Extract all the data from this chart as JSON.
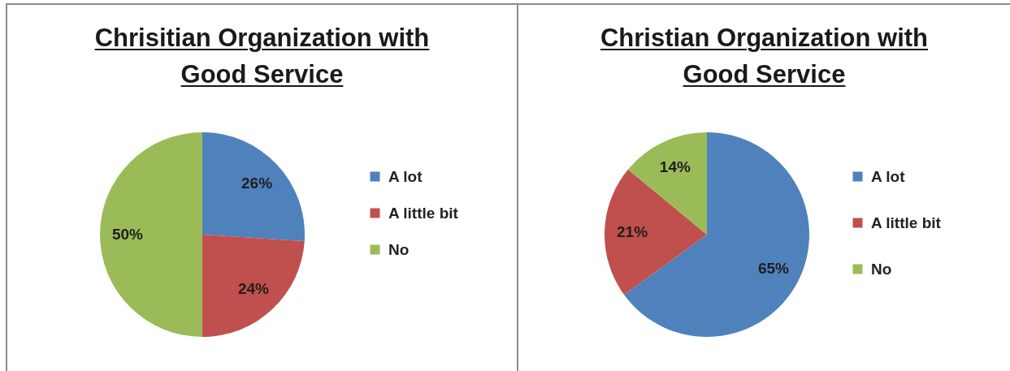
{
  "chart_data": [
    {
      "type": "pie",
      "title": "Chrisitian Organization with Good Service",
      "categories": [
        "A lot",
        "A little bit",
        "No"
      ],
      "values": [
        26,
        24,
        50
      ],
      "value_labels": [
        "26%",
        "24%",
        "50%"
      ],
      "colors": [
        "#4f81bd",
        "#c0504d",
        "#9bbb59"
      ],
      "legend": "right"
    },
    {
      "type": "pie",
      "title": "Christian Organization with Good Service",
      "categories": [
        "A lot",
        "A little bit",
        "No"
      ],
      "values": [
        65,
        21,
        14
      ],
      "value_labels": [
        "65%",
        "21%",
        "14%"
      ],
      "colors": [
        "#4f81bd",
        "#c0504d",
        "#9bbb59"
      ],
      "legend": "right"
    }
  ]
}
